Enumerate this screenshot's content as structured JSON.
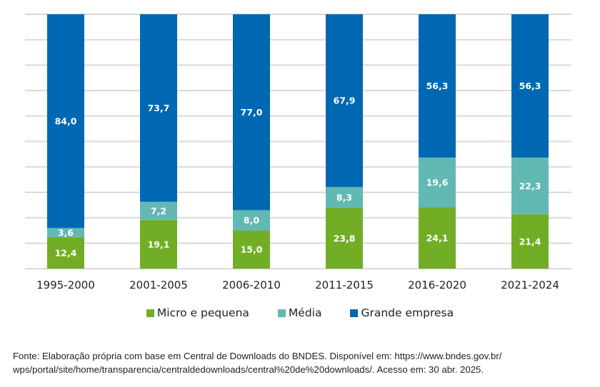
{
  "chart_data": {
    "type": "bar",
    "stacked": true,
    "title": "",
    "xlabel": "",
    "ylabel": "",
    "ylim": [
      0,
      100
    ],
    "grid": true,
    "legend_position": "bottom",
    "categories": [
      "1995-2000",
      "2001-2005",
      "2006-2010",
      "2011-2015",
      "2016-2020",
      "2021-2024"
    ],
    "series": [
      {
        "name": "Micro e pequena",
        "color": "#72ae25",
        "values": [
          12.4,
          19.1,
          15.0,
          23.8,
          24.1,
          21.4
        ],
        "labels": [
          "12,4",
          "19,1",
          "15,0",
          "23,8",
          "24,1",
          "21,4"
        ]
      },
      {
        "name": "Média",
        "color": "#62b8b3",
        "values": [
          3.6,
          7.2,
          8.0,
          8.3,
          19.6,
          22.3
        ],
        "labels": [
          "3,6",
          "7,2",
          "8,0",
          "8,3",
          "19,6",
          "22,3"
        ]
      },
      {
        "name": "Grande empresa",
        "color": "#0068b3",
        "values": [
          84.0,
          73.7,
          77.0,
          67.9,
          56.3,
          56.3
        ],
        "labels": [
          "84,0",
          "73,7",
          "77,0",
          "67,9",
          "56,3",
          "56,3"
        ]
      }
    ]
  },
  "legend": {
    "items": [
      {
        "label": "Micro e pequena",
        "color": "#72ae25"
      },
      {
        "label": "Média",
        "color": "#62b8b3"
      },
      {
        "label": "Grande empresa",
        "color": "#0068b3"
      }
    ]
  },
  "source": {
    "line1": "Fonte: Elaboração própria com base em Central de Downloads do BNDES. Disponível em: https://www.bndes.gov.br/",
    "line2": "wps/portal/site/home/transparencia/centraldedownloads/central%20de%20downloads/. Acesso em: 30 abr. 2025."
  }
}
